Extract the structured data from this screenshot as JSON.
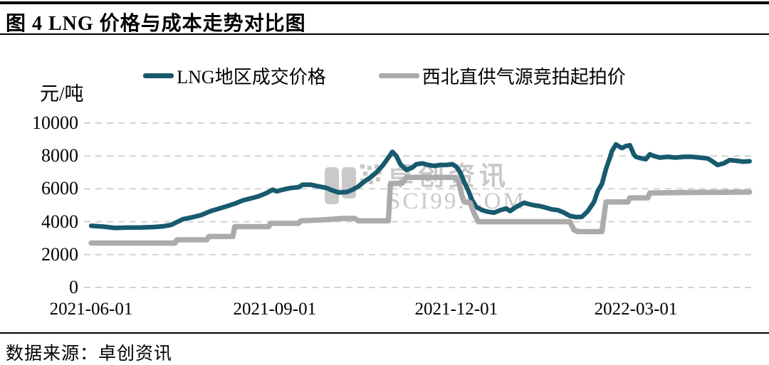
{
  "header": {
    "title": "图 4 LNG 价格与成本走势对比图"
  },
  "watermark": {
    "line1": "卓创资讯",
    "line2": "SCI99.COM"
  },
  "footer": {
    "source": "数据来源：卓创资讯"
  },
  "chart_data": {
    "type": "line",
    "unit_label": "元/吨",
    "ylim": [
      0,
      10000
    ],
    "yticks": [
      0,
      2000,
      4000,
      6000,
      8000,
      10000
    ],
    "grid": "dashed-horizontal",
    "legend_position": "top-center",
    "x_axis": {
      "start_date": "2021-06-01",
      "ticks": [
        {
          "label": "2021-06-01",
          "day": 0
        },
        {
          "label": "2021-09-01",
          "day": 92
        },
        {
          "label": "2021-12-01",
          "day": 183
        },
        {
          "label": "2022-03-01",
          "day": 273
        }
      ],
      "span_days": 330
    },
    "series": [
      {
        "name": "LNG地区成交价格",
        "color": "#175A6E",
        "width": 6.5,
        "points": [
          [
            0,
            3750
          ],
          [
            6,
            3700
          ],
          [
            12,
            3620
          ],
          [
            18,
            3640
          ],
          [
            25,
            3650
          ],
          [
            32,
            3680
          ],
          [
            36,
            3720
          ],
          [
            40,
            3800
          ],
          [
            46,
            4150
          ],
          [
            50,
            4250
          ],
          [
            55,
            4400
          ],
          [
            60,
            4650
          ],
          [
            67,
            4900
          ],
          [
            72,
            5100
          ],
          [
            76,
            5300
          ],
          [
            81,
            5450
          ],
          [
            84,
            5550
          ],
          [
            88,
            5750
          ],
          [
            91,
            5950
          ],
          [
            93,
            5850
          ],
          [
            96,
            5950
          ],
          [
            100,
            6050
          ],
          [
            104,
            6100
          ],
          [
            106,
            6250
          ],
          [
            110,
            6250
          ],
          [
            114,
            6150
          ],
          [
            118,
            6050
          ],
          [
            121,
            5900
          ],
          [
            124,
            5780
          ],
          [
            128,
            5800
          ],
          [
            131,
            5950
          ],
          [
            134,
            6150
          ],
          [
            137,
            6450
          ],
          [
            140,
            6700
          ],
          [
            143,
            7000
          ],
          [
            146,
            7400
          ],
          [
            149,
            7900
          ],
          [
            151,
            8250
          ],
          [
            153,
            8000
          ],
          [
            155,
            7500
          ],
          [
            158,
            7150
          ],
          [
            161,
            7300
          ],
          [
            163,
            7500
          ],
          [
            166,
            7550
          ],
          [
            169,
            7450
          ],
          [
            172,
            7400
          ],
          [
            175,
            7450
          ],
          [
            178,
            7450
          ],
          [
            181,
            7500
          ],
          [
            183,
            7350
          ],
          [
            185,
            7000
          ],
          [
            187,
            6400
          ],
          [
            189,
            5900
          ],
          [
            191,
            5300
          ],
          [
            193,
            4900
          ],
          [
            196,
            4700
          ],
          [
            199,
            4600
          ],
          [
            202,
            4550
          ],
          [
            205,
            4700
          ],
          [
            208,
            4800
          ],
          [
            210,
            4650
          ],
          [
            213,
            4900
          ],
          [
            217,
            5150
          ],
          [
            220,
            5050
          ],
          [
            222,
            5000
          ],
          [
            225,
            4950
          ],
          [
            228,
            4850
          ],
          [
            231,
            4750
          ],
          [
            234,
            4700
          ],
          [
            237,
            4550
          ],
          [
            240,
            4350
          ],
          [
            243,
            4280
          ],
          [
            246,
            4300
          ],
          [
            249,
            4650
          ],
          [
            252,
            5200
          ],
          [
            254,
            5900
          ],
          [
            256,
            6300
          ],
          [
            258,
            7200
          ],
          [
            260,
            7900
          ],
          [
            261,
            8300
          ],
          [
            263,
            8700
          ],
          [
            265,
            8550
          ],
          [
            266,
            8480
          ],
          [
            268,
            8600
          ],
          [
            270,
            8650
          ],
          [
            272,
            8100
          ],
          [
            273,
            7950
          ],
          [
            276,
            7850
          ],
          [
            278,
            7800
          ],
          [
            280,
            8100
          ],
          [
            282,
            8000
          ],
          [
            285,
            7900
          ],
          [
            289,
            7950
          ],
          [
            293,
            7900
          ],
          [
            297,
            7950
          ],
          [
            301,
            7950
          ],
          [
            305,
            7900
          ],
          [
            309,
            7850
          ],
          [
            311,
            7700
          ],
          [
            314,
            7450
          ],
          [
            317,
            7550
          ],
          [
            320,
            7750
          ],
          [
            324,
            7700
          ],
          [
            327,
            7650
          ],
          [
            330,
            7680
          ]
        ]
      },
      {
        "name": "西北直供气源竞拍起拍价",
        "color": "#ABABAB",
        "width": 7.5,
        "points": [
          [
            0,
            2700
          ],
          [
            42,
            2700
          ],
          [
            43,
            2900
          ],
          [
            58,
            2900
          ],
          [
            59,
            3100
          ],
          [
            71,
            3100
          ],
          [
            72,
            3700
          ],
          [
            89,
            3700
          ],
          [
            90,
            3900
          ],
          [
            104,
            3900
          ],
          [
            105,
            4050
          ],
          [
            114,
            4100
          ],
          [
            121,
            4150
          ],
          [
            126,
            4200
          ],
          [
            132,
            4200
          ],
          [
            134,
            4050
          ],
          [
            149,
            4050
          ],
          [
            150,
            6300
          ],
          [
            156,
            6350
          ],
          [
            158,
            6700
          ],
          [
            182,
            6700
          ],
          [
            184,
            6550
          ],
          [
            186,
            5500
          ],
          [
            187,
            5200
          ],
          [
            190,
            5150
          ],
          [
            192,
            4500
          ],
          [
            194,
            4000
          ],
          [
            240,
            4000
          ],
          [
            242,
            3500
          ],
          [
            244,
            3400
          ],
          [
            256,
            3400
          ],
          [
            258,
            5200
          ],
          [
            269,
            5200
          ],
          [
            270,
            5450
          ],
          [
            279,
            5450
          ],
          [
            280,
            5750
          ],
          [
            300,
            5780
          ],
          [
            330,
            5800
          ]
        ]
      }
    ],
    "gridline_color": "#D2D2D2",
    "watermark_color": "#C9C9C9"
  }
}
